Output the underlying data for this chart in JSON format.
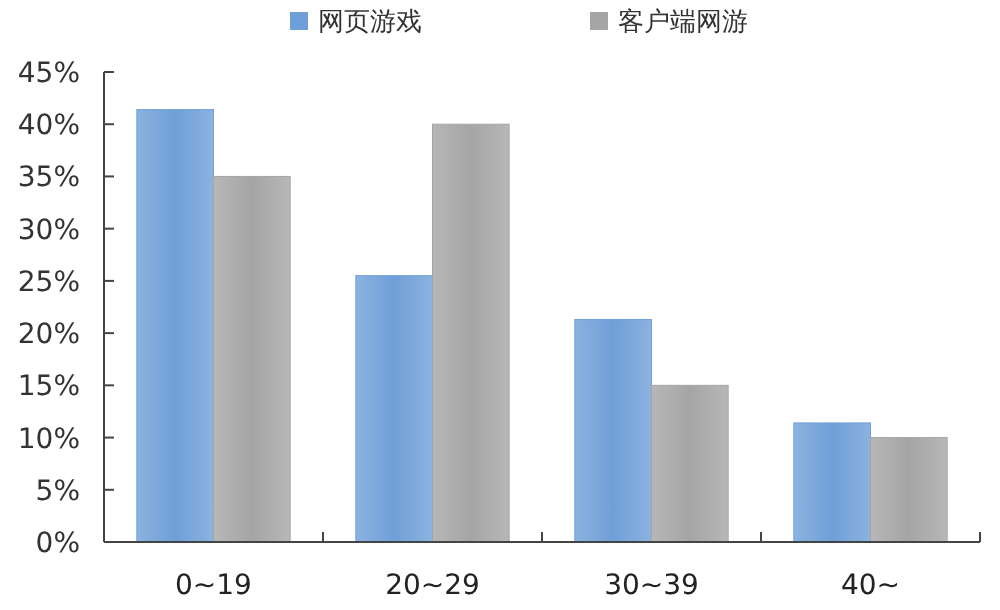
{
  "chart_data": {
    "type": "bar",
    "categories": [
      "0~19",
      "20~29",
      "30~39",
      "40~"
    ],
    "series": [
      {
        "name": "网页游戏",
        "color": "#6f9fd8",
        "values": [
          41.4,
          25.5,
          21.3,
          11.4
        ]
      },
      {
        "name": "客户端网游",
        "color": "#a5a5a5",
        "values": [
          35,
          40,
          15,
          10
        ]
      }
    ],
    "ylim": [
      0,
      45
    ],
    "yticks": [
      {
        "value": 0,
        "label": "0%"
      },
      {
        "value": 5,
        "label": "5%"
      },
      {
        "value": 10,
        "label": "10%"
      },
      {
        "value": 15,
        "label": "15%"
      },
      {
        "value": 20,
        "label": "20%"
      },
      {
        "value": 25,
        "label": "25%"
      },
      {
        "value": 30,
        "label": "30%"
      },
      {
        "value": 35,
        "label": "35%"
      },
      {
        "value": 40,
        "label": "40%"
      },
      {
        "value": 45,
        "label": "45%"
      }
    ],
    "grid": false,
    "legend": "top"
  }
}
